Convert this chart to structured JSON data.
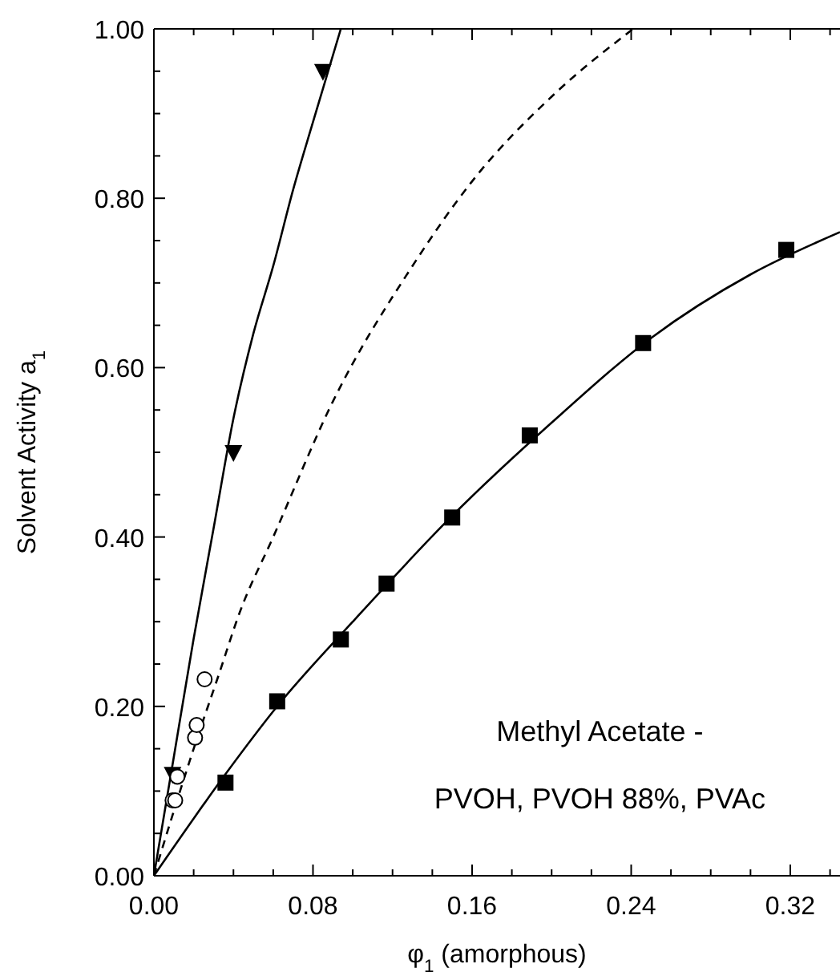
{
  "chart_data": {
    "type": "scatter",
    "xlabel": "φ$_{1}$ (amorphous)",
    "ylabel": "Solvent Activity a$_{1}$",
    "xlim": [
      0,
      0.345
    ],
    "ylim": [
      0,
      1
    ],
    "xticks": [
      {
        "value": 0,
        "label": "0.00"
      },
      {
        "value": 0.02,
        "label": null
      },
      {
        "value": 0.04,
        "label": null
      },
      {
        "value": 0.06,
        "label": null
      },
      {
        "value": 0.08,
        "label": "0.08"
      },
      {
        "value": 0.1,
        "label": null
      },
      {
        "value": 0.12,
        "label": null
      },
      {
        "value": 0.14,
        "label": null
      },
      {
        "value": 0.16,
        "label": "0.16"
      },
      {
        "value": 0.18,
        "label": null
      },
      {
        "value": 0.2,
        "label": null
      },
      {
        "value": 0.22,
        "label": null
      },
      {
        "value": 0.24,
        "label": "0.24"
      },
      {
        "value": 0.26,
        "label": null
      },
      {
        "value": 0.28,
        "label": null
      },
      {
        "value": 0.3,
        "label": null
      },
      {
        "value": 0.32,
        "label": "0.32"
      },
      {
        "value": 0.34,
        "label": null
      }
    ],
    "yticks": [
      {
        "value": 0,
        "label": "0.00"
      },
      {
        "value": 0.05,
        "label": null
      },
      {
        "value": 0.1,
        "label": null
      },
      {
        "value": 0.15,
        "label": null
      },
      {
        "value": 0.2,
        "label": "0.20"
      },
      {
        "value": 0.25,
        "label": null
      },
      {
        "value": 0.3,
        "label": null
      },
      {
        "value": 0.35,
        "label": null
      },
      {
        "value": 0.4,
        "label": "0.40"
      },
      {
        "value": 0.45,
        "label": null
      },
      {
        "value": 0.5,
        "label": null
      },
      {
        "value": 0.55,
        "label": null
      },
      {
        "value": 0.6,
        "label": "0.60"
      },
      {
        "value": 0.65,
        "label": null
      },
      {
        "value": 0.7,
        "label": null
      },
      {
        "value": 0.75,
        "label": null
      },
      {
        "value": 0.8,
        "label": "0.80"
      },
      {
        "value": 0.85,
        "label": null
      },
      {
        "value": 0.9,
        "label": null
      },
      {
        "value": 0.95,
        "label": null
      },
      {
        "value": 1,
        "label": "1.00"
      }
    ],
    "grid": false,
    "annotations": [
      "Methyl Acetate -",
      "PVOH, PVOH 88%, PVAc"
    ],
    "series": [
      {
        "type": "line",
        "color": "#000000",
        "line_style": "solid",
        "marker": "none",
        "x": [
          0,
          0.01,
          0.02,
          0.03,
          0.04,
          0.05,
          0.06,
          0.07,
          0.08,
          0.094
        ],
        "values": [
          0,
          0.14,
          0.28,
          0.41,
          0.54,
          0.64,
          0.72,
          0.81,
          0.89,
          1.0
        ]
      },
      {
        "type": "line",
        "color": "#000000",
        "line_style": "dashed",
        "marker": "none",
        "x": [
          0,
          0.02,
          0.033,
          0.043,
          0.06,
          0.09,
          0.13,
          0.16,
          0.2,
          0.241
        ],
        "values": [
          0,
          0.15,
          0.24,
          0.31,
          0.4,
          0.56,
          0.72,
          0.82,
          0.92,
          1.0
        ]
      },
      {
        "type": "line",
        "color": "#000000",
        "line_style": "solid",
        "marker": "none",
        "x": [
          0,
          0.036,
          0.062,
          0.1,
          0.15,
          0.2,
          0.25,
          0.3,
          0.345
        ],
        "values": [
          0,
          0.12,
          0.2,
          0.3,
          0.425,
          0.535,
          0.635,
          0.71,
          0.76
        ]
      },
      {
        "color": "#000000",
        "marker": "triangle",
        "x": [
          0.0094,
          0.04,
          0.085
        ],
        "values": [
          0.12,
          0.5,
          0.95
        ]
      },
      {
        "color": "#000000",
        "marker": "circle",
        "x": [
          0.0094,
          0.0107,
          0.0118,
          0.0207,
          0.0215,
          0.0255
        ],
        "values": [
          0.089,
          0.089,
          0.117,
          0.163,
          0.178,
          0.232
        ]
      },
      {
        "color": "#000000",
        "marker": "square",
        "x": [
          0.036,
          0.062,
          0.094,
          0.117,
          0.15,
          0.189,
          0.246,
          0.318
        ],
        "values": [
          0.11,
          0.206,
          0.279,
          0.345,
          0.423,
          0.52,
          0.629,
          0.739
        ]
      }
    ]
  }
}
